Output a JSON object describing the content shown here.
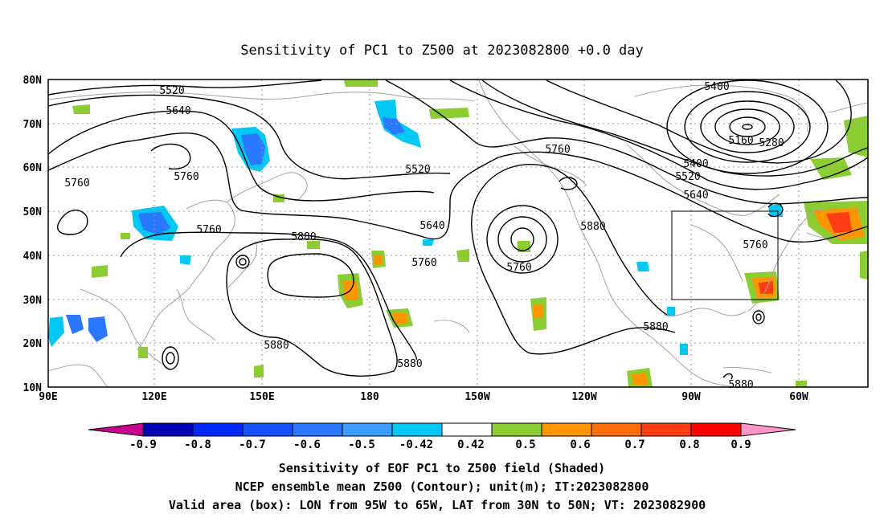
{
  "title": "Sensitivity of PC1 to Z500 at 2023082800 +0.0 day",
  "lon_ticks": [
    "90E",
    "120E",
    "150E",
    "180",
    "150W",
    "120W",
    "90W",
    "60W"
  ],
  "lat_ticks": [
    "80N",
    "70N",
    "60N",
    "50N",
    "40N",
    "30N",
    "20N",
    "10N"
  ],
  "colorbar": {
    "labels": [
      "-0.9",
      "-0.8",
      "-0.7",
      "-0.6",
      "-0.5",
      "-0.42",
      "0.42",
      "0.5",
      "0.6",
      "0.7",
      "0.8",
      "0.9"
    ],
    "colors": [
      "#c8008c",
      "#0000b4",
      "#0028ff",
      "#1450ff",
      "#2a78ff",
      "#3c9bff",
      "#00c8f5",
      "#ffffff",
      "#8ccd32",
      "#ff9600",
      "#ff6e0a",
      "#ff3c14",
      "#ff0000",
      "#ff96c8"
    ]
  },
  "caption": {
    "line1": "Sensitivity of EOF PC1 to Z500 field (Shaded)",
    "line2": "NCEP ensemble mean Z500 (Contour); unit(m); IT:2023082800",
    "line3": "Valid area (box): LON from 95W to 65W, LAT from 30N to 50N; VT: 2023082900"
  },
  "contour_labels": [
    "5520",
    "5640",
    "5760",
    "5520",
    "5760",
    "5760",
    "5880",
    "5640",
    "5760",
    "5760",
    "5880",
    "5880",
    "5880",
    "5880",
    "5400",
    "5160",
    "5280",
    "5400",
    "5520",
    "5640",
    "5760",
    "5880"
  ],
  "valid_box": {
    "lon_range": [
      "95W",
      "65W"
    ],
    "lat_range": [
      "30N",
      "50N"
    ]
  }
}
